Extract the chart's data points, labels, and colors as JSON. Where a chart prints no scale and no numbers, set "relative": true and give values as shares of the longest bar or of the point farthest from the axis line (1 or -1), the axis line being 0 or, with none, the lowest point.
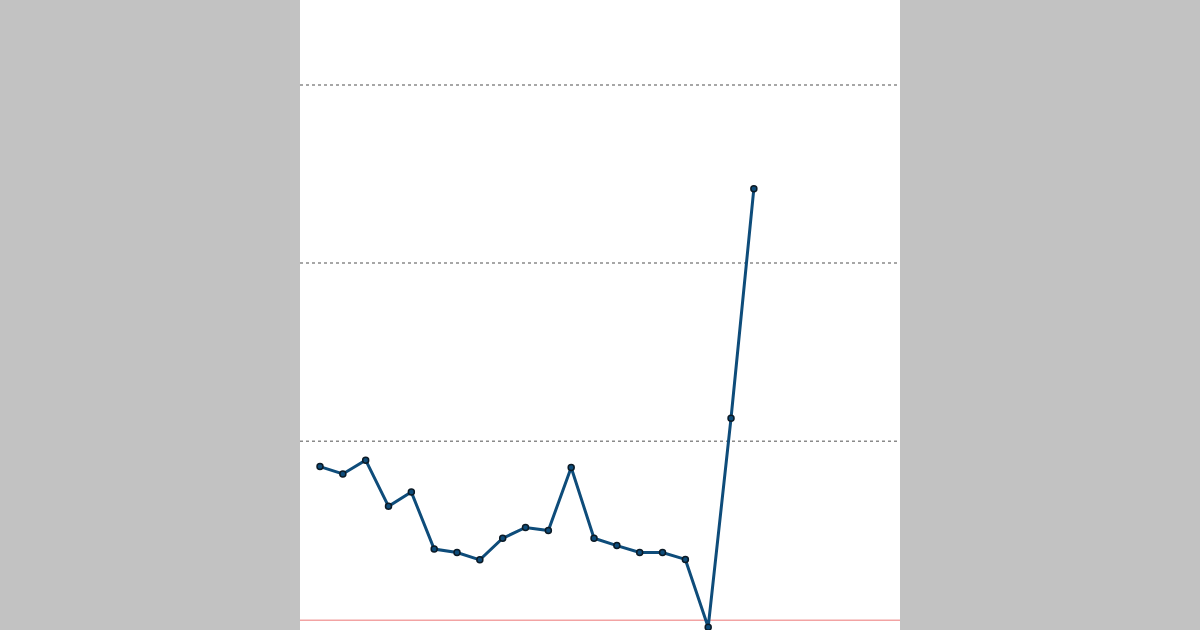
{
  "chart_data": {
    "type": "line",
    "relative": true,
    "categories": [
      null,
      null,
      null,
      null,
      null,
      null,
      null,
      null,
      null,
      null,
      null,
      null,
      null,
      null,
      null,
      null,
      null,
      null,
      null,
      null
    ],
    "series": [
      {
        "color": "#0e4c7a",
        "values": [
          0.356,
          0.339,
          0.371,
          0.264,
          0.297,
          0.165,
          0.157,
          0.14,
          0.19,
          0.215,
          0.208,
          0.354,
          0.19,
          0.173,
          0.157,
          0.157,
          0.141,
          -0.016,
          0.468,
          1
        ]
      }
    ],
    "ref_lines": [
      {
        "axis": "y",
        "value": 0,
        "color": "#f2a3a3",
        "line_style": "solid"
      },
      {
        "axis": "y",
        "value": 0.415,
        "color": "#8a8a8a",
        "line_style": "dotted"
      },
      {
        "axis": "y",
        "value": 0.828,
        "color": "#8a8a8a",
        "line_style": "dotted"
      },
      {
        "axis": "y",
        "value": 1.24,
        "color": "#8a8a8a",
        "line_style": "dotted"
      }
    ],
    "marker": "circle",
    "line_style": "solid"
  }
}
